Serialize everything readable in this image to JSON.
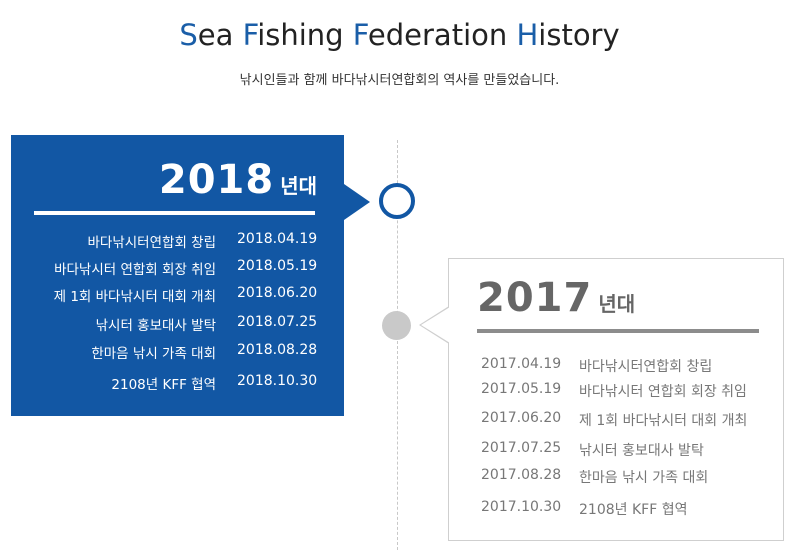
{
  "header": {
    "title_parts": [
      {
        "cap": "S",
        "rest": "ea "
      },
      {
        "cap": "F",
        "rest": "ishing "
      },
      {
        "cap": "F",
        "rest": "ederation "
      },
      {
        "cap": "H",
        "rest": "istory"
      }
    ],
    "subtitle": "낚시인들과 함께  바다낚시터연합회의 역사를 만들었습니다."
  },
  "timeline": [
    {
      "year": "2018",
      "suffix": "년대",
      "style": "highlight",
      "events": [
        {
          "label": "바다낚시터연합회 창립",
          "date": "2018.04.19"
        },
        {
          "label": "바다낚시터 연합회 회장 취임",
          "date": "2018.05.19"
        },
        {
          "label": "제 1회 바다낚시터 대회 개최",
          "date": "2018.06.20"
        },
        {
          "label": "낚시터 홍보대사 발탁",
          "date": "2018.07.25"
        },
        {
          "label": "한마음 낚시 가족 대회",
          "date": "2018.08.28"
        },
        {
          "label": "2108년 KFF 협역",
          "date": "2018.10.30"
        }
      ]
    },
    {
      "year": "2017",
      "suffix": "년대",
      "style": "muted",
      "events": [
        {
          "date": "2017.04.19",
          "label": "바다낚시터연합회 창립"
        },
        {
          "date": "2017.05.19",
          "label": "바다낚시터 연합회 회장 취임"
        },
        {
          "date": "2017.06.20",
          "label": "제 1회 바다낚시터 대회 개최"
        },
        {
          "date": "2017.07.25",
          "label": "낚시터 홍보대사 발탁"
        },
        {
          "date": "2017.08.28",
          "label": "한마음 낚시 가족 대회"
        },
        {
          "date": "2017.10.30",
          "label": "2108년 KFF 협역"
        }
      ]
    }
  ],
  "colors": {
    "accent": "#1257a4",
    "muted": "#8c8c8c",
    "circle_muted": "#c9c9c9"
  }
}
